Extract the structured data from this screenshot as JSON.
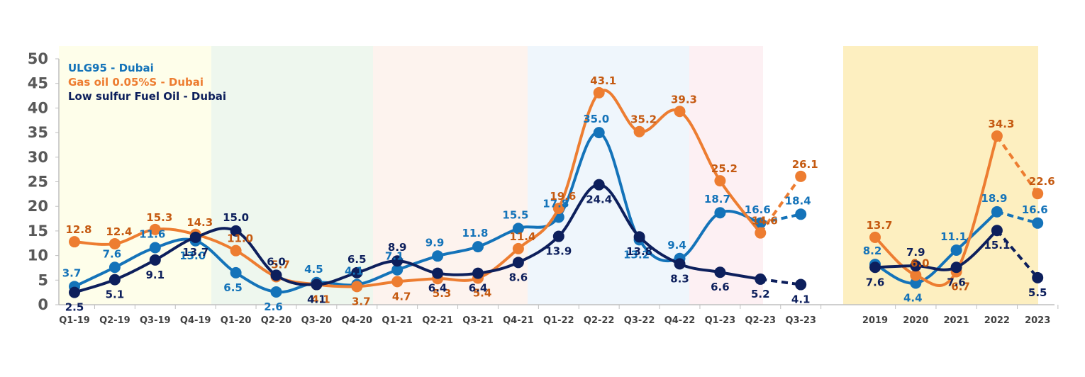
{
  "chart_data": {
    "type": "line",
    "title": "",
    "xlabel": "",
    "ylabel": "",
    "ylim": [
      0,
      50
    ],
    "yticks": [
      0,
      5,
      10,
      15,
      20,
      25,
      30,
      35,
      40,
      45,
      50
    ],
    "grid": false,
    "legend_position": "top-left",
    "quarterly": {
      "categories": [
        "Q1-19",
        "Q2-19",
        "Q3-19",
        "Q4-19",
        "Q1-20",
        "Q2-20",
        "Q3-20",
        "Q4-20",
        "Q1-21",
        "Q2-21",
        "Q3-21",
        "Q4-21",
        "Q1-22",
        "Q2-22",
        "Q3-22",
        "Q4-22",
        "Q1-23",
        "Q2-23",
        "Q3-23"
      ],
      "series": [
        {
          "name": "ULG95 - Dubai",
          "color": "#1473B9",
          "values": [
            3.7,
            7.6,
            11.6,
            13.0,
            6.5,
            2.6,
            4.5,
            4.1,
            7.1,
            9.9,
            11.8,
            15.5,
            17.8,
            35.0,
            13.2,
            9.4,
            18.7,
            16.6,
            18.4
          ],
          "labels": [
            "3.7",
            "7.6",
            "11.6",
            "13.0",
            "6.5",
            "2.6",
            "4.5",
            "4.1",
            "7.1",
            "9.9",
            "11.8",
            "15.5",
            "17.8",
            "35.0",
            "13.2",
            "9.4",
            "18.7",
            "16.6",
            "18.4"
          ]
        },
        {
          "name": "Gas oil 0.05%S - Dubai",
          "color": "#ED7D31",
          "values": [
            12.8,
            12.4,
            15.3,
            14.3,
            11.0,
            5.7,
            4.1,
            3.7,
            4.7,
            5.3,
            5.4,
            11.4,
            19.6,
            43.1,
            35.2,
            39.3,
            25.2,
            14.6,
            26.1
          ],
          "labels": [
            "12.8",
            "12.4",
            "15.3",
            "14.3",
            "11.0",
            "5.7",
            "4.1",
            "3.7",
            "4.7",
            "5.3",
            "5.4",
            "11.4",
            "19.6",
            "43.1",
            "35.2",
            "39.3",
            "25.2",
            "14.6",
            "26.1"
          ]
        },
        {
          "name": "Low sulfur Fuel Oil - Dubai",
          "color": "#0D1F5C",
          "values": [
            2.5,
            5.1,
            9.1,
            13.7,
            15.0,
            6.0,
            4.1,
            6.5,
            8.9,
            6.4,
            6.4,
            8.6,
            13.9,
            24.4,
            13.8,
            8.3,
            6.6,
            5.2,
            4.1
          ],
          "labels": [
            "2.5",
            "5.1",
            "9.1",
            "13.7",
            "15.0",
            "6.0",
            "4.1",
            "6.5",
            "8.9",
            "6.4",
            "6.4",
            "8.6",
            "13.9",
            "24.4",
            "13.8",
            "8.3",
            "6.6",
            "5.2",
            "4.1"
          ]
        }
      ]
    },
    "annual": {
      "categories": [
        "2019",
        "2020",
        "2021",
        "2022",
        "2023"
      ],
      "series": [
        {
          "name": "ULG95 - Dubai",
          "color": "#1473B9",
          "values": [
            8.2,
            4.4,
            11.1,
            18.9,
            16.6
          ],
          "labels": [
            "8.2",
            "4.4",
            "11.1",
            "18.9",
            "16.6"
          ]
        },
        {
          "name": "Gas oil 0.05%S - Dubai",
          "color": "#ED7D31",
          "values": [
            13.7,
            6.0,
            6.7,
            34.3,
            22.6
          ],
          "labels": [
            "13.7",
            "6.0",
            "6.7",
            "34.3",
            "22.6"
          ]
        },
        {
          "name": "Low sulfur Fuel Oil - Dubai",
          "color": "#0D1F5C",
          "values": [
            7.6,
            7.9,
            7.6,
            15.1,
            5.5
          ],
          "labels": [
            "7.6",
            "7.9",
            "7.6",
            "15.1",
            "5.5"
          ]
        }
      ]
    },
    "legend": [
      "ULG95 - Dubai",
      "Gas oil 0.05%S - Dubai",
      "Low sulfur Fuel Oil - Dubai"
    ],
    "background_bands": [
      {
        "color": "#FEFEEA"
      },
      {
        "color": "#EEF7EE"
      },
      {
        "color": "#FDF3EE"
      },
      {
        "color": "#EFF6FC"
      },
      {
        "color": "#FDF0F3"
      },
      {
        "color": "#FDEFC0"
      }
    ]
  }
}
